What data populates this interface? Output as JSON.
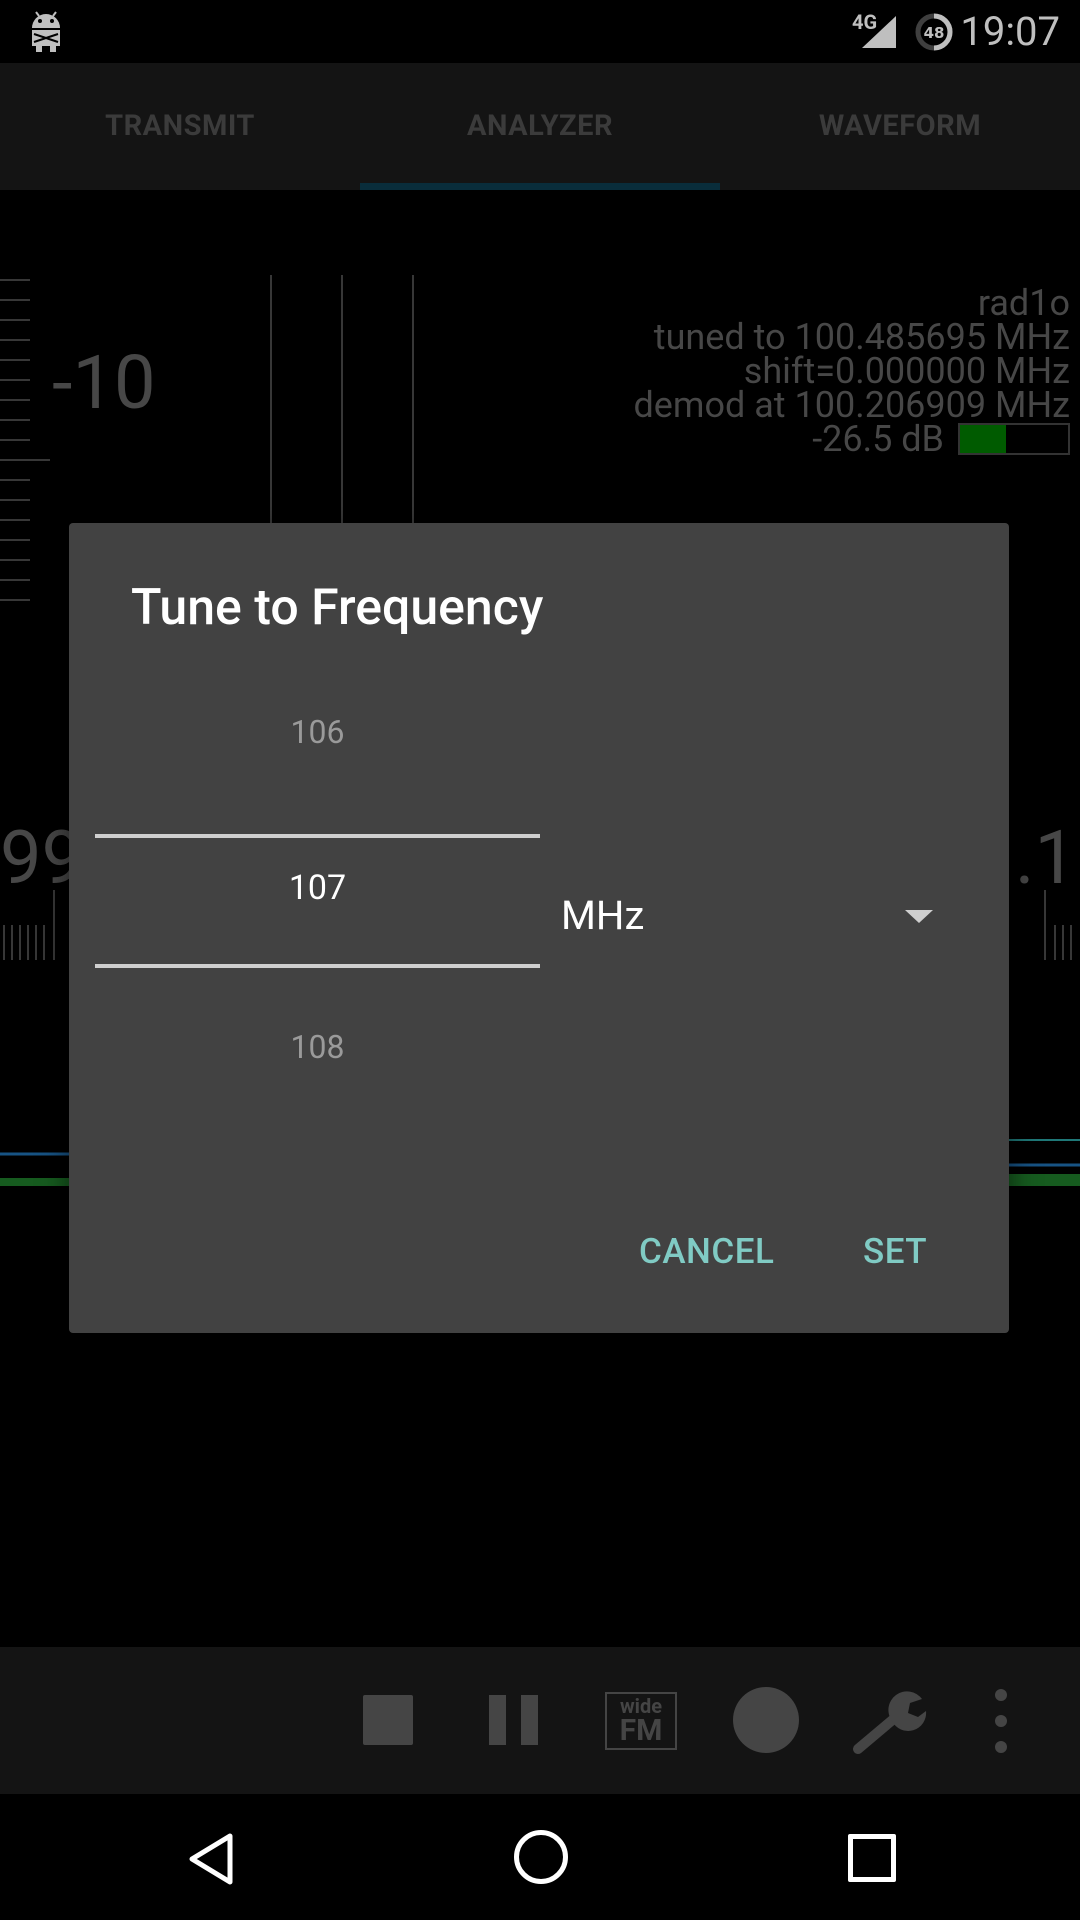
{
  "status_bar": {
    "network": "4G",
    "battery_level": "48",
    "time": "19:07"
  },
  "tabs": [
    {
      "label": "TRANSMIT"
    },
    {
      "label": "ANALYZER"
    },
    {
      "label": "WAVEFORM"
    }
  ],
  "analyzer": {
    "device": "rad1o",
    "tuned": "tuned to 100.485695 MHz",
    "shift": "shift=0.000000 MHz",
    "demod": "demod at 100.206909 MHz",
    "level": "-26.5 dB",
    "scale_labels": {
      "minus10": "-10",
      "freq_left": "99",
      "freq_right": ".1"
    }
  },
  "dialog": {
    "title": "Tune to Frequency",
    "picker": {
      "previous": "106",
      "current": "107",
      "next": "108"
    },
    "unit": "MHz",
    "cancel_label": "CANCEL",
    "set_label": "SET"
  },
  "toolbar": {
    "mode_badge_top": "wide",
    "mode_badge_bottom": "FM"
  },
  "colors": {
    "accent": "#80cbc4",
    "dialog_bg": "#424242",
    "level_green": "#007a00"
  }
}
